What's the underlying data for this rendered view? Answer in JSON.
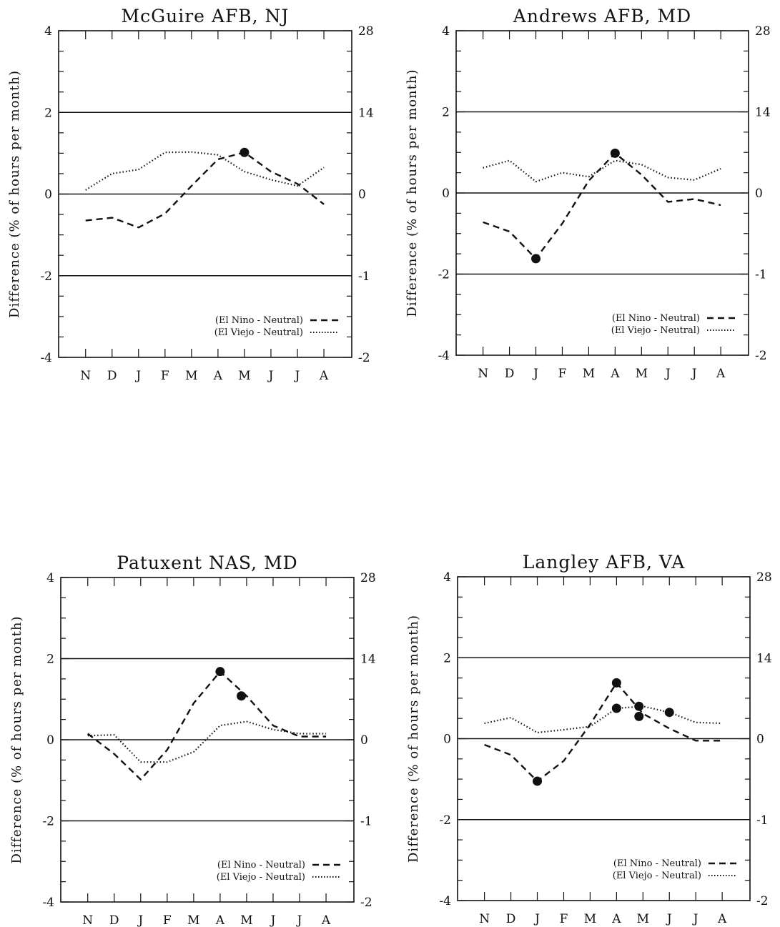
{
  "y_axis_label": "Difference (% of hours per month)",
  "chart_data": [
    {
      "type": "line",
      "title": "McGuire AFB, NJ",
      "categories": [
        "N",
        "D",
        "J",
        "F",
        "M",
        "A",
        "M",
        "J",
        "J",
        "A"
      ],
      "ylabel": "Difference (% of hours per month)",
      "ylim": [
        -4,
        4
      ],
      "yticks": [
        "4",
        "2",
        "0",
        "-2",
        "-4"
      ],
      "right_ticks": [
        "28",
        "14",
        "0",
        "-1",
        "-2"
      ],
      "reference_lines": [
        2,
        0,
        -2
      ],
      "legend_placement": "bottom-right",
      "series": [
        {
          "name": "(El Nino - Neutral)",
          "style": "dashed",
          "values": [
            -0.65,
            -0.58,
            -0.82,
            -0.48,
            0.2,
            0.85,
            1.02,
            0.55,
            0.25,
            -0.25
          ],
          "markers": [
            [
              6,
              1.02
            ]
          ]
        },
        {
          "name": "(El Viejo - Neutral)",
          "style": "dotted",
          "values": [
            0.1,
            0.5,
            0.6,
            1.02,
            1.03,
            0.96,
            0.55,
            0.35,
            0.2,
            0.65
          ],
          "markers": []
        }
      ]
    },
    {
      "type": "line",
      "title": "Andrews AFB, MD",
      "categories": [
        "N",
        "D",
        "J",
        "F",
        "M",
        "A",
        "M",
        "J",
        "J",
        "A"
      ],
      "ylabel": "Difference (% of hours per month)",
      "ylim": [
        -4,
        4
      ],
      "yticks": [
        "4",
        "2",
        "0",
        "-2",
        "-4"
      ],
      "right_ticks": [
        "28",
        "14",
        "0",
        "-1",
        "-2"
      ],
      "reference_lines": [
        2,
        0,
        -2
      ],
      "legend_placement": "bottom-right",
      "series": [
        {
          "name": "(El Nino - Neutral)",
          "style": "dashed",
          "values": [
            -0.72,
            -0.95,
            -1.62,
            -0.75,
            0.3,
            0.98,
            0.45,
            -0.22,
            -0.15,
            -0.3
          ],
          "markers": [
            [
              2,
              -1.62
            ],
            [
              5,
              0.98
            ]
          ]
        },
        {
          "name": "(El Viejo - Neutral)",
          "style": "dotted",
          "values": [
            0.62,
            0.8,
            0.28,
            0.5,
            0.4,
            0.8,
            0.7,
            0.38,
            0.32,
            0.6
          ],
          "markers": []
        }
      ]
    },
    {
      "type": "line",
      "title": "Patuxent NAS, MD",
      "categories": [
        "N",
        "D",
        "J",
        "F",
        "M",
        "A",
        "M",
        "J",
        "J",
        "A"
      ],
      "ylabel": "Difference (% of hours per month)",
      "ylim": [
        -4,
        4
      ],
      "yticks": [
        "4",
        "2",
        "0",
        "-2",
        "-4"
      ],
      "right_ticks": [
        "28",
        "14",
        "0",
        "-1",
        "-2"
      ],
      "reference_lines": [
        2,
        0,
        -2
      ],
      "legend_placement": "bottom-right",
      "series": [
        {
          "name": "(El Nino - Neutral)",
          "style": "dashed",
          "values": [
            0.15,
            -0.35,
            -0.98,
            -0.25,
            0.9,
            1.68,
            1.08,
            0.35,
            0.08,
            0.08
          ],
          "markers": [
            [
              5,
              1.68
            ],
            [
              5.8,
              1.08
            ]
          ]
        },
        {
          "name": "(El Viejo - Neutral)",
          "style": "dotted",
          "values": [
            0.1,
            0.12,
            -0.55,
            -0.55,
            -0.3,
            0.35,
            0.45,
            0.25,
            0.15,
            0.15
          ],
          "markers": []
        }
      ]
    },
    {
      "type": "line",
      "title": "Langley AFB, VA",
      "categories": [
        "N",
        "D",
        "J",
        "F",
        "M",
        "A",
        "M",
        "J",
        "J",
        "A"
      ],
      "ylabel": "Difference (% of hours per month)",
      "ylim": [
        -4,
        4
      ],
      "yticks": [
        "4",
        "2",
        "0",
        "-2",
        "-4"
      ],
      "right_ticks": [
        "28",
        "14",
        "0",
        "-1",
        "-2"
      ],
      "reference_lines": [
        2,
        0,
        -2
      ],
      "legend_placement": "bottom-right",
      "series": [
        {
          "name": "(El Nino - Neutral)",
          "style": "dashed",
          "values": [
            -0.15,
            -0.4,
            -1.05,
            -0.55,
            0.35,
            1.38,
            0.62,
            0.25,
            -0.05,
            -0.05
          ],
          "markers": [
            [
              2,
              -1.05
            ],
            [
              5,
              1.38
            ],
            [
              5.85,
              0.55
            ]
          ]
        },
        {
          "name": "(El Viejo - Neutral)",
          "style": "dotted",
          "values": [
            0.38,
            0.52,
            0.15,
            0.22,
            0.3,
            0.75,
            0.8,
            0.65,
            0.4,
            0.38
          ],
          "markers": [
            [
              5,
              0.75
            ],
            [
              5.85,
              0.8
            ],
            [
              7,
              0.65
            ]
          ]
        }
      ]
    }
  ]
}
